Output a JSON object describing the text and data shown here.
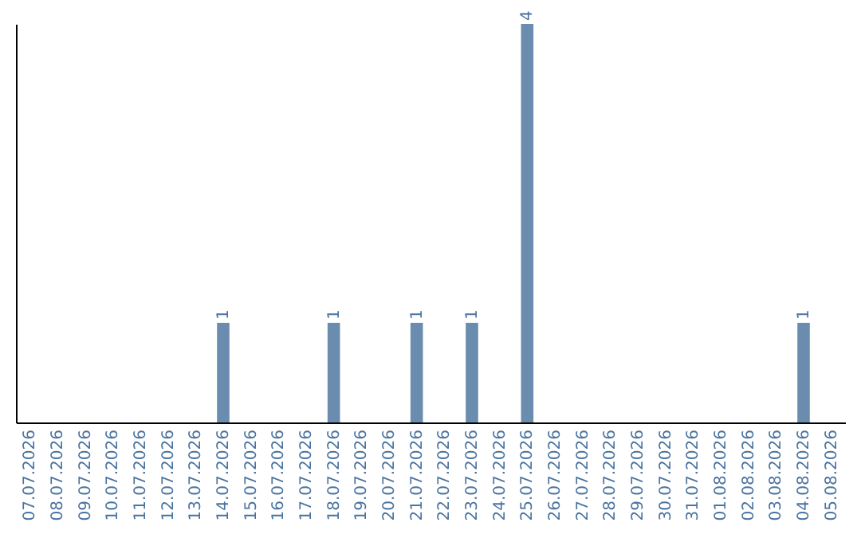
{
  "chart_data": {
    "type": "bar",
    "categories": [
      "07.07.2026",
      "08.07.2026",
      "09.07.2026",
      "10.07.2026",
      "11.07.2026",
      "12.07.2026",
      "13.07.2026",
      "14.07.2026",
      "15.07.2026",
      "16.07.2026",
      "17.07.2026",
      "18.07.2026",
      "19.07.2026",
      "20.07.2026",
      "21.07.2026",
      "22.07.2026",
      "23.07.2026",
      "24.07.2026",
      "25.07.2026",
      "26.07.2026",
      "27.07.2026",
      "28.07.2026",
      "29.07.2026",
      "30.07.2026",
      "31.07.2026",
      "01.08.2026",
      "02.08.2026",
      "03.08.2026",
      "04.08.2026",
      "05.08.2026"
    ],
    "values": [
      0,
      0,
      0,
      0,
      0,
      0,
      0,
      1,
      0,
      0,
      0,
      1,
      0,
      0,
      1,
      0,
      1,
      0,
      4,
      0,
      0,
      0,
      0,
      0,
      0,
      0,
      0,
      0,
      1,
      0
    ],
    "value_labels": [
      null,
      null,
      null,
      null,
      null,
      null,
      null,
      "1",
      null,
      null,
      null,
      "1",
      null,
      null,
      "1",
      null,
      "1",
      null,
      "4",
      null,
      null,
      null,
      null,
      null,
      null,
      null,
      null,
      null,
      "1",
      null
    ],
    "color": "#6a8caf"
  }
}
